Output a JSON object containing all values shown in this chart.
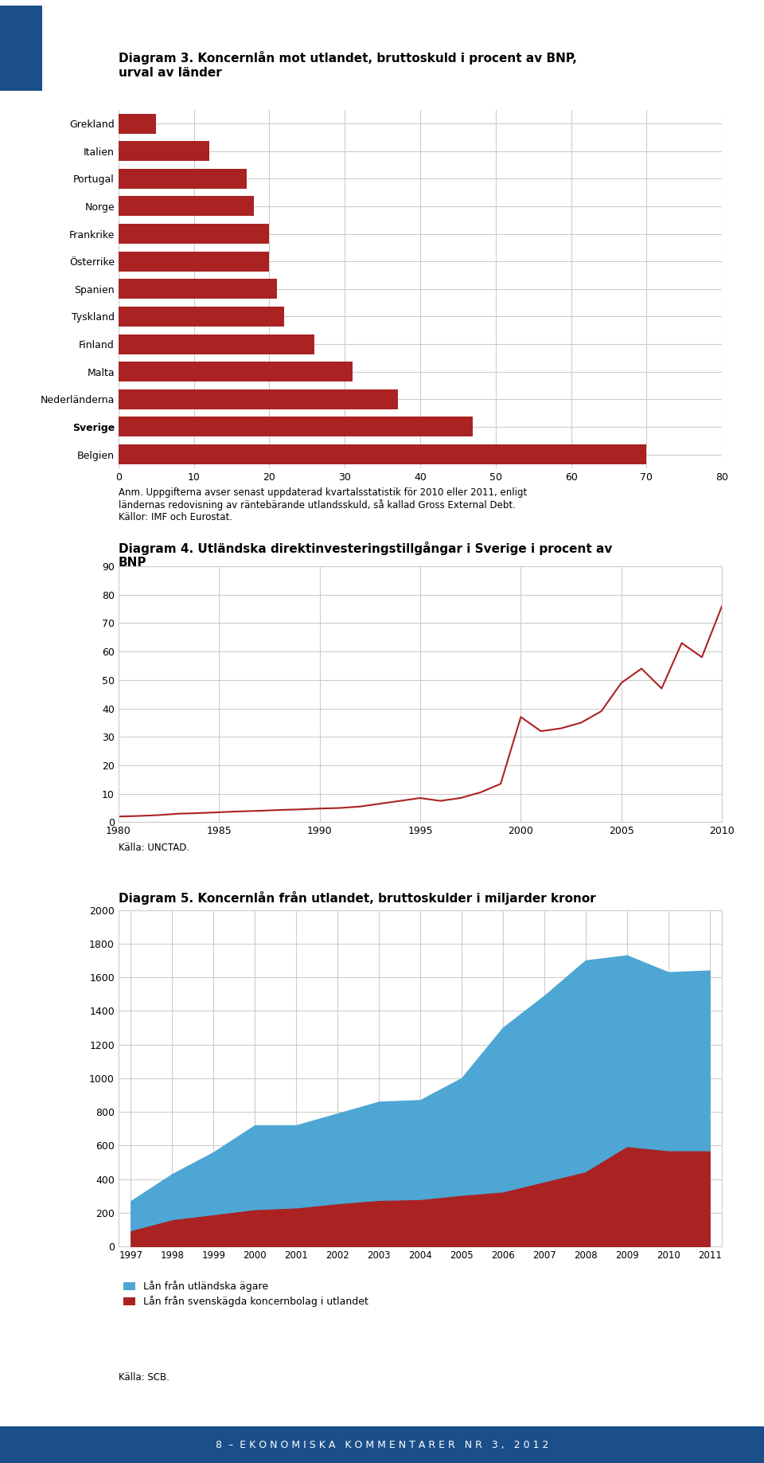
{
  "chart1": {
    "title": "Diagram 3. Koncernlån mot utlandet, bruttoskuld i procent av BNP,\nurval av länder",
    "categories": [
      "Grekland",
      "Italien",
      "Portugal",
      "Norge",
      "Frankrike",
      "Österrike",
      "Spanien",
      "Tyskland",
      "Finland",
      "Malta",
      "Nederländerna",
      "Sverige",
      "Belgien"
    ],
    "values": [
      5,
      12,
      17,
      18,
      20,
      20,
      21,
      22,
      26,
      31,
      37,
      47,
      70
    ],
    "bar_color": "#aa2222",
    "xlim": [
      0,
      80
    ],
    "xticks": [
      0,
      10,
      20,
      30,
      40,
      50,
      60,
      70,
      80
    ],
    "note": "Anm. Uppgifterna avser senast uppdaterad kvartalsstatistik för 2010 eller 2011, enligt\nländernas redovisning av räntebärande utlandsskuld, så kallad Gross External Debt.\nKällor: IMF och Eurostat."
  },
  "chart2": {
    "title": "Diagram 4. Utländska direktinvesteringstillgångar i Sverige i procent av\nBNP",
    "years": [
      1980,
      1981,
      1982,
      1983,
      1984,
      1985,
      1986,
      1987,
      1988,
      1989,
      1990,
      1991,
      1992,
      1993,
      1994,
      1995,
      1996,
      1997,
      1998,
      1999,
      2000,
      2001,
      2002,
      2003,
      2004,
      2005,
      2006,
      2007,
      2008,
      2009,
      2010
    ],
    "values": [
      2.0,
      2.2,
      2.5,
      3.0,
      3.2,
      3.5,
      3.8,
      4.0,
      4.3,
      4.5,
      4.8,
      5.0,
      5.5,
      6.5,
      7.5,
      8.5,
      7.5,
      8.5,
      10.5,
      13.5,
      37.0,
      32.0,
      33.0,
      35.0,
      39.0,
      49.0,
      54.0,
      47.0,
      63.0,
      58.0,
      76.0
    ],
    "line_color": "#aa2222",
    "ylim": [
      0,
      90
    ],
    "yticks": [
      0,
      10,
      20,
      30,
      40,
      50,
      60,
      70,
      80,
      90
    ],
    "xlim": [
      1980,
      2010
    ],
    "xticks": [
      1980,
      1985,
      1990,
      1995,
      2000,
      2005,
      2010
    ],
    "source": "Källa: UNCTAD."
  },
  "chart3": {
    "title": "Diagram 5. Koncernlån från utlandet, bruttoskulder i miljarder kronor",
    "years": [
      1997,
      1998,
      1999,
      2000,
      2001,
      2002,
      2003,
      2004,
      2005,
      2006,
      2007,
      2008,
      2009,
      2010,
      2011
    ],
    "total_values": [
      270,
      430,
      560,
      720,
      720,
      790,
      860,
      870,
      1000,
      1300,
      1490,
      1700,
      1730,
      1630,
      1640
    ],
    "red_values": [
      90,
      155,
      185,
      215,
      225,
      250,
      270,
      275,
      300,
      320,
      380,
      440,
      590,
      565,
      565
    ],
    "blue_color": "#4da6d4",
    "red_color": "#aa2222",
    "ylim": [
      0,
      2000
    ],
    "yticks": [
      0,
      200,
      400,
      600,
      800,
      1000,
      1200,
      1400,
      1600,
      1800,
      2000
    ],
    "legend": [
      "Lån från utländska ägare",
      "Lån från svenskägda koncernbolag i utlandet"
    ],
    "source": "Källa: SCB."
  },
  "bg_color": "#ffffff",
  "grid_color": "#cccccc",
  "text_color": "#000000",
  "blue_square_color": "#1a4f8a",
  "footer_text": "8  –  E K O N O M I S K A   K O M M E N T A R E R   N R   3 ,   2 0 1 2"
}
